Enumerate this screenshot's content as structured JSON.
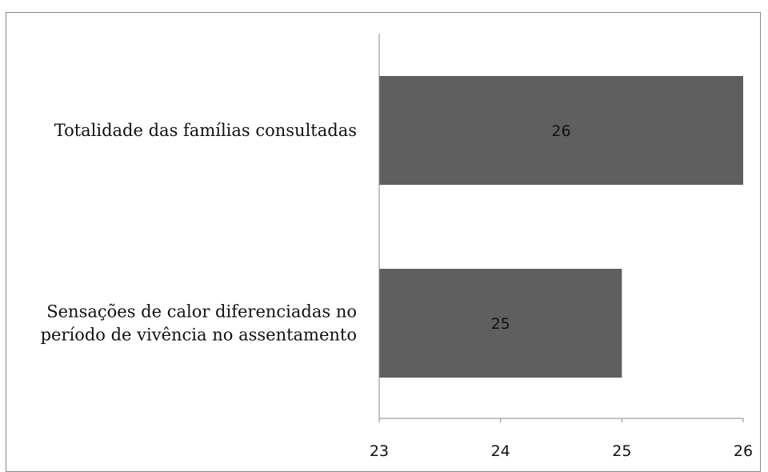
{
  "chart_data": {
    "type": "bar",
    "orientation": "horizontal",
    "categories": [
      "Totalidade das famílias consultadas",
      "Sensações de calor diferenciadas no período de vivência no assentamento"
    ],
    "category_lines": [
      [
        "Totalidade das famílias consultadas"
      ],
      [
        "Sensações de calor diferenciadas no",
        "período de vivência no assentamento"
      ]
    ],
    "values": [
      26,
      25
    ],
    "data_labels": [
      "26",
      "25"
    ],
    "xlim": [
      23,
      26
    ],
    "ticks": [
      23,
      24,
      25,
      26
    ],
    "tick_labels": [
      "23",
      "24",
      "25",
      "26"
    ],
    "bar_color": "#5f5f5f",
    "grid": false,
    "title": "",
    "xlabel": "",
    "ylabel": ""
  }
}
